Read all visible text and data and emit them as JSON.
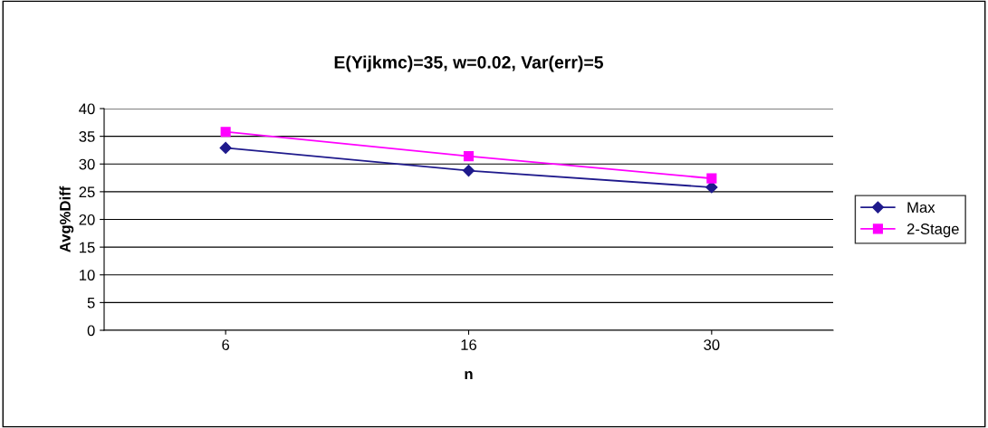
{
  "chart_data": {
    "type": "line",
    "title": "E(Yijkmc)=35, w=0.02, Var(err)=5",
    "xlabel": "n",
    "ylabel": "Avg%Diff",
    "categories": [
      "6",
      "16",
      "30"
    ],
    "series": [
      {
        "name": "Max",
        "color": "#1f1a8c",
        "values": [
          32.9,
          28.8,
          25.8
        ],
        "marker": "diamond"
      },
      {
        "name": "2-Stage",
        "color": "#ff00ff",
        "values": [
          35.8,
          31.4,
          27.4
        ],
        "marker": "square"
      }
    ],
    "ylim": [
      0,
      40
    ],
    "yticks": [
      0,
      5,
      10,
      15,
      20,
      25,
      30,
      35,
      40
    ],
    "grid": "y",
    "legend": "right",
    "line_style": "solid"
  }
}
